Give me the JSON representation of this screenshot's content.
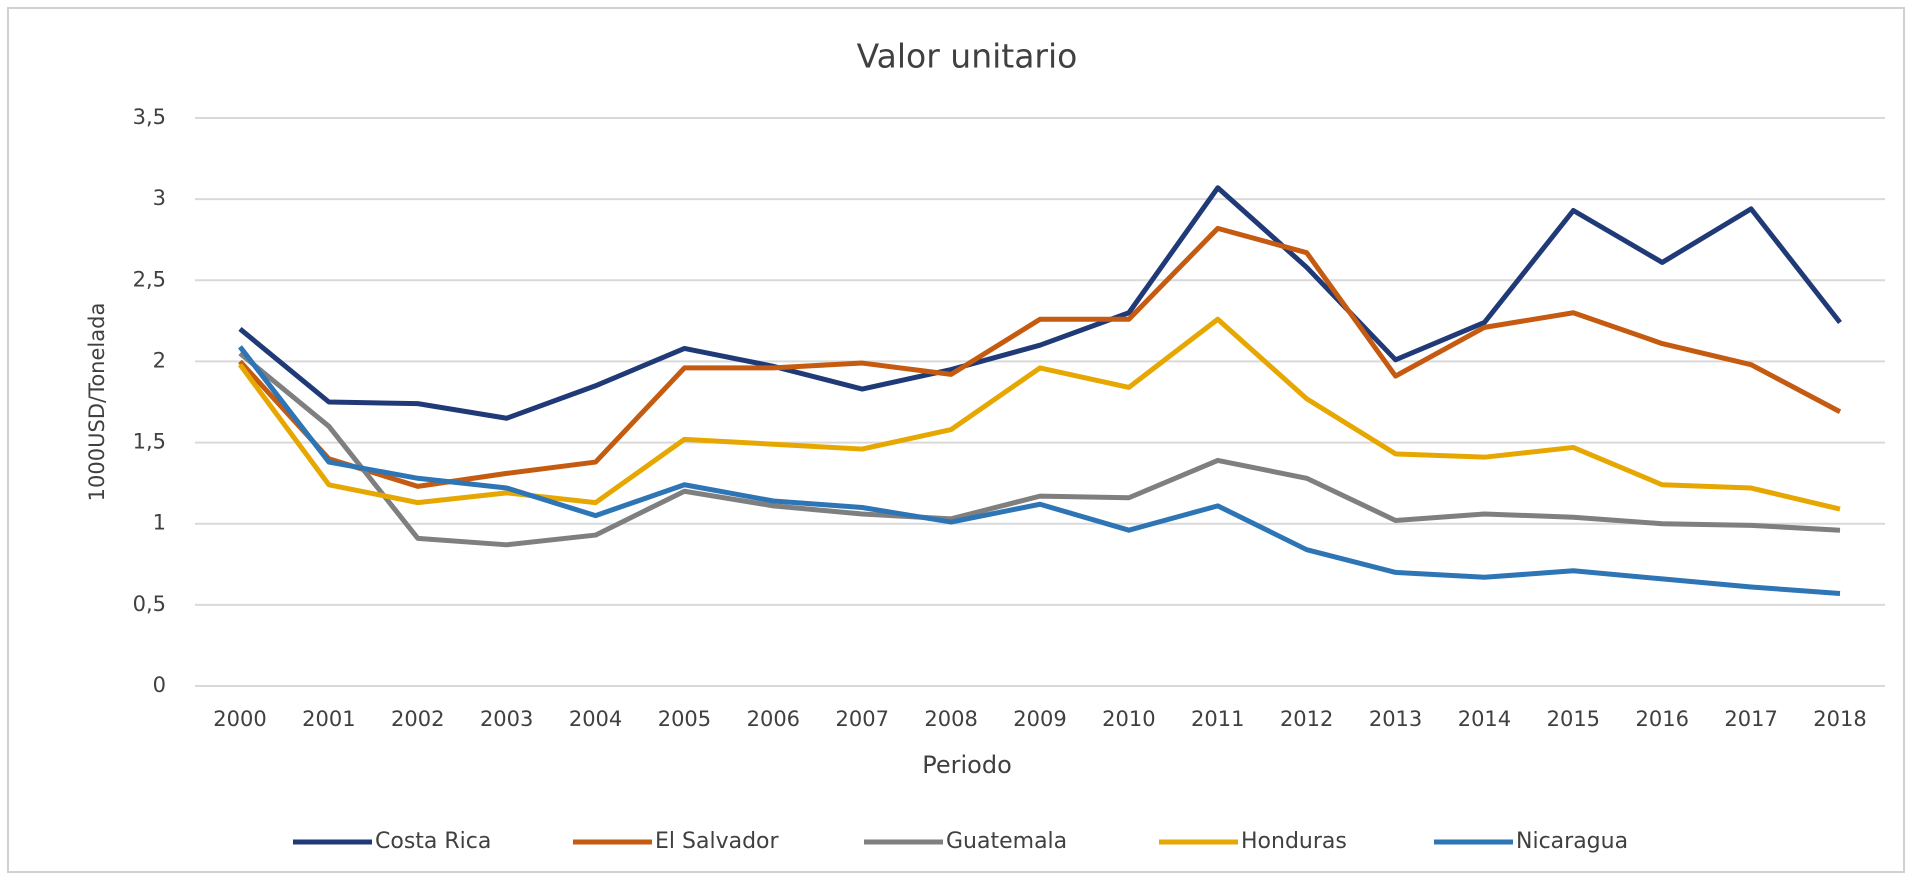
{
  "chart_data": {
    "type": "line",
    "title": "Valor unitario",
    "x_label": "Periodo",
    "y_label": "1000USD/Tonelada",
    "categories": [
      "2000",
      "2001",
      "2002",
      "2003",
      "2004",
      "2005",
      "2006",
      "2007",
      "2008",
      "2009",
      "2010",
      "2011",
      "2012",
      "2013",
      "2014",
      "2015",
      "2016",
      "2017",
      "2018"
    ],
    "series": [
      {
        "name": "Costa Rica",
        "color": "#203a78",
        "values": [
          2.2,
          1.75,
          1.74,
          1.65,
          1.85,
          2.08,
          1.97,
          1.83,
          1.95,
          2.1,
          2.3,
          3.07,
          2.58,
          2.01,
          2.24,
          2.93,
          2.61,
          2.94,
          2.24
        ]
      },
      {
        "name": "El Salvador",
        "color": "#c55a11",
        "values": [
          2.0,
          1.4,
          1.23,
          1.31,
          1.38,
          1.96,
          1.96,
          1.99,
          1.92,
          2.26,
          2.26,
          2.82,
          2.67,
          1.91,
          2.21,
          2.3,
          2.11,
          1.98,
          1.69
        ]
      },
      {
        "name": "Guatemala",
        "color": "#7f7f7f",
        "values": [
          2.05,
          1.6,
          0.91,
          0.87,
          0.93,
          1.2,
          1.11,
          1.06,
          1.03,
          1.17,
          1.16,
          1.39,
          1.28,
          1.02,
          1.06,
          1.04,
          1.0,
          0.99,
          0.96
        ]
      },
      {
        "name": "Honduras",
        "color": "#e6a700",
        "values": [
          1.98,
          1.24,
          1.13,
          1.19,
          1.13,
          1.52,
          1.49,
          1.46,
          1.58,
          1.96,
          1.84,
          2.26,
          1.77,
          1.43,
          1.41,
          1.47,
          1.24,
          1.22,
          1.09
        ]
      },
      {
        "name": "Nicaragua",
        "color": "#2e75b6",
        "values": [
          2.09,
          1.38,
          1.28,
          1.22,
          1.05,
          1.24,
          1.14,
          1.1,
          1.01,
          1.12,
          0.96,
          1.11,
          0.84,
          0.7,
          0.67,
          0.71,
          0.66,
          0.61,
          0.57
        ]
      }
    ],
    "ylim": [
      0,
      3.5
    ],
    "yticks": [
      0,
      {
        "value": 0.5,
        "label": "0,5"
      },
      1,
      {
        "value": 1.5,
        "label": "1,5"
      },
      2,
      {
        "value": 2.5,
        "label": "2,5"
      },
      3,
      {
        "value": 3.5,
        "label": "3,5"
      }
    ],
    "grid": true,
    "legend": "bottom"
  }
}
